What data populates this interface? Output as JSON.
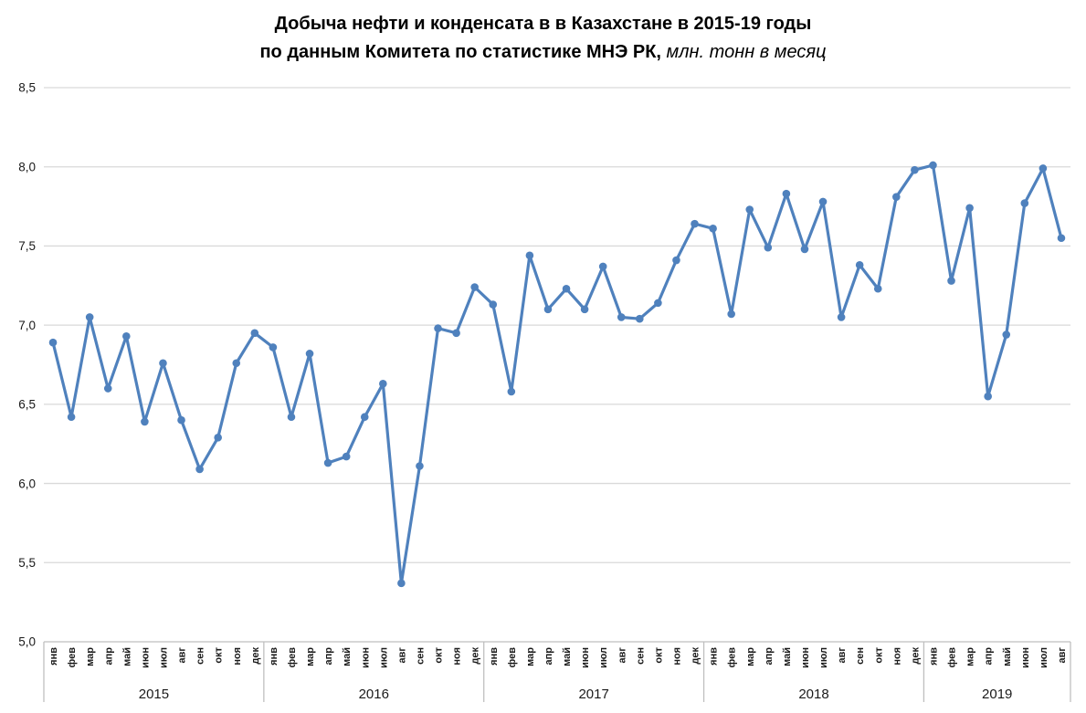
{
  "title": {
    "line1": "Добыча нефти и конденсата в в Казахстане в 2015-19 годы",
    "line2_bold": "по данным Комитета по статистике МНЭ РК,",
    "line2_italic": " млн. тонн в месяц"
  },
  "colors": {
    "line": "#4F81BD",
    "gridline": "#D9D9D9",
    "axis": "#BFBFBF",
    "text": "#1A1A1A",
    "background": "#FFFFFF"
  },
  "chart_data": {
    "type": "line",
    "title": "Добыча нефти и конденсата в в Казахстане в 2015-19 годы по данным Комитета по статистике МНЭ РК, млн. тонн в месяц",
    "ylabel": "млн. тонн в месяц",
    "grid": true,
    "legend": "none",
    "marker": "circle",
    "y_axis": {
      "range": [
        5.0,
        8.5
      ],
      "ticks": [
        {
          "value": 5.0,
          "label": "5,0"
        },
        {
          "value": 5.5,
          "label": "5,5"
        },
        {
          "value": 6.0,
          "label": "6,0"
        },
        {
          "value": 6.5,
          "label": "6,5"
        },
        {
          "value": 7.0,
          "label": "7,0"
        },
        {
          "value": 7.5,
          "label": "7,5"
        },
        {
          "value": 8.0,
          "label": "8,0"
        },
        {
          "value": 8.5,
          "label": "8,5"
        }
      ]
    },
    "groups": [
      {
        "year": "2015",
        "months": [
          "янв",
          "фев",
          "мар",
          "апр",
          "май",
          "июн",
          "июл",
          "авг",
          "сен",
          "окт",
          "ноя",
          "дек"
        ],
        "values": [
          6.89,
          6.42,
          7.05,
          6.6,
          6.93,
          6.39,
          6.76,
          6.4,
          6.09,
          6.29,
          6.76,
          6.95
        ]
      },
      {
        "year": "2016",
        "months": [
          "янв",
          "фев",
          "мар",
          "апр",
          "май",
          "июн",
          "июл",
          "авг",
          "сен",
          "окт",
          "ноя",
          "дек"
        ],
        "values": [
          6.86,
          6.42,
          6.82,
          6.13,
          6.17,
          6.42,
          6.63,
          5.37,
          6.11,
          6.98,
          6.95,
          7.24
        ]
      },
      {
        "year": "2017",
        "months": [
          "янв",
          "фев",
          "мар",
          "апр",
          "май",
          "июн",
          "июл",
          "авг",
          "сен",
          "окт",
          "ноя",
          "дек"
        ],
        "values": [
          7.13,
          6.58,
          7.44,
          7.1,
          7.23,
          7.1,
          7.37,
          7.05,
          7.04,
          7.14,
          7.41,
          7.64
        ]
      },
      {
        "year": "2018",
        "months": [
          "янв",
          "фев",
          "мар",
          "апр",
          "май",
          "июн",
          "июл",
          "авг",
          "сен",
          "окт",
          "ноя",
          "дек"
        ],
        "values": [
          7.61,
          7.07,
          7.73,
          7.49,
          7.83,
          7.48,
          7.78,
          7.05,
          7.38,
          7.23,
          7.81,
          7.98
        ]
      },
      {
        "year": "2019",
        "months": [
          "янв",
          "фев",
          "мар",
          "апр",
          "май",
          "июн",
          "июл",
          "авг"
        ],
        "values": [
          8.01,
          7.28,
          7.74,
          6.55,
          6.94,
          7.77,
          7.99,
          7.55
        ]
      }
    ]
  }
}
